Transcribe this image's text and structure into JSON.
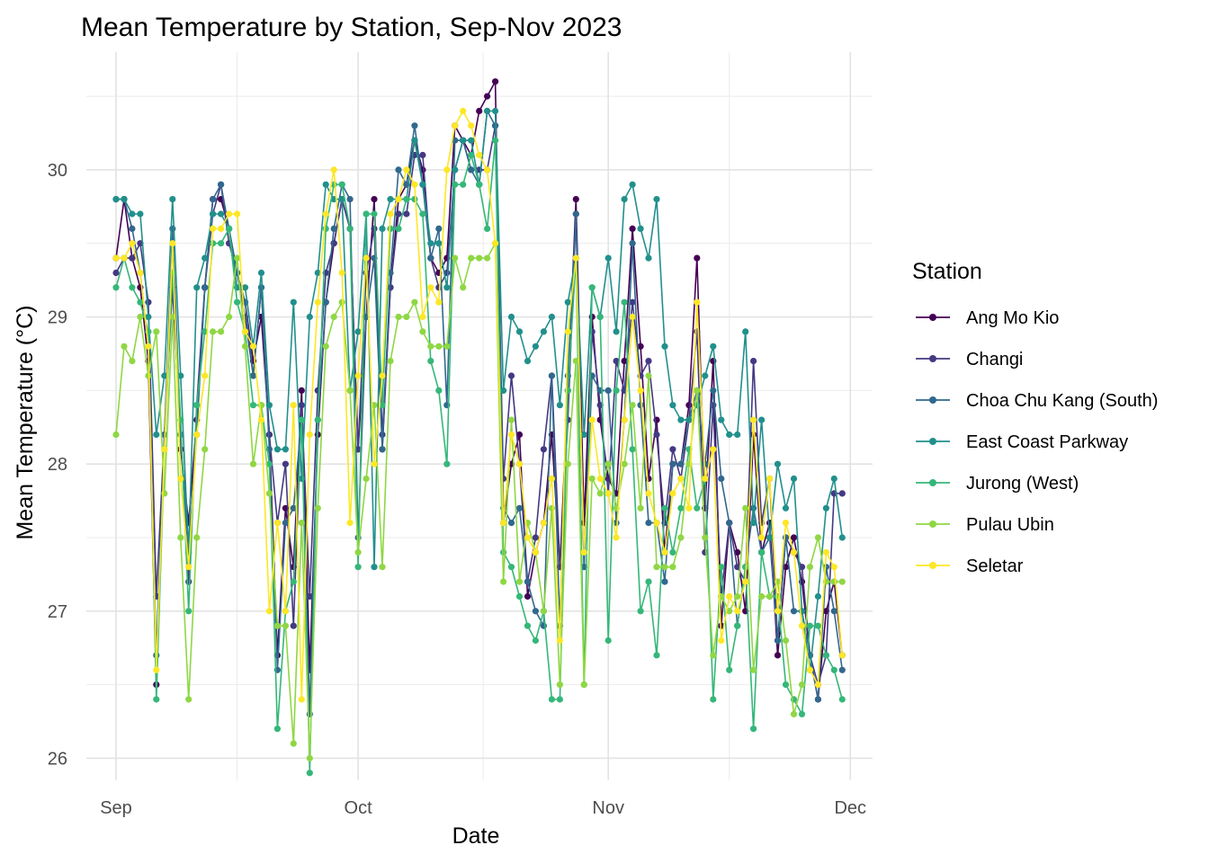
{
  "chart_data": {
    "type": "line",
    "title": "Mean Temperature by Station, Sep-Nov 2023",
    "xlabel": "Date",
    "ylabel": "Mean Temperature (°C)",
    "x_start": "2023-09-01",
    "x": [
      "2023-09-01",
      "2023-09-02",
      "2023-09-03",
      "2023-09-04",
      "2023-09-05",
      "2023-09-06",
      "2023-09-07",
      "2023-09-08",
      "2023-09-09",
      "2023-09-10",
      "2023-09-11",
      "2023-09-12",
      "2023-09-13",
      "2023-09-14",
      "2023-09-15",
      "2023-09-16",
      "2023-09-17",
      "2023-09-18",
      "2023-09-19",
      "2023-09-20",
      "2023-09-21",
      "2023-09-22",
      "2023-09-23",
      "2023-09-24",
      "2023-09-25",
      "2023-09-26",
      "2023-09-27",
      "2023-09-28",
      "2023-09-29",
      "2023-09-30",
      "2023-10-01",
      "2023-10-02",
      "2023-10-03",
      "2023-10-04",
      "2023-10-05",
      "2023-10-06",
      "2023-10-07",
      "2023-10-08",
      "2023-10-09",
      "2023-10-10",
      "2023-10-11",
      "2023-10-12",
      "2023-10-13",
      "2023-10-14",
      "2023-10-15",
      "2023-10-16",
      "2023-10-17",
      "2023-10-18",
      "2023-10-19",
      "2023-10-20",
      "2023-10-21",
      "2023-10-22",
      "2023-10-23",
      "2023-10-24",
      "2023-10-25",
      "2023-10-26",
      "2023-10-27",
      "2023-10-28",
      "2023-10-29",
      "2023-10-30",
      "2023-10-31",
      "2023-11-01",
      "2023-11-02",
      "2023-11-03",
      "2023-11-04",
      "2023-11-05",
      "2023-11-06",
      "2023-11-07",
      "2023-11-08",
      "2023-11-09",
      "2023-11-10",
      "2023-11-11",
      "2023-11-12",
      "2023-11-13",
      "2023-11-14",
      "2023-11-15",
      "2023-11-16",
      "2023-11-17",
      "2023-11-18",
      "2023-11-19",
      "2023-11-20",
      "2023-11-21",
      "2023-11-22",
      "2023-11-23",
      "2023-11-24",
      "2023-11-25",
      "2023-11-26",
      "2023-11-27",
      "2023-11-28",
      "2023-11-29",
      "2023-11-30"
    ],
    "ylim": [
      25.85,
      30.8
    ],
    "yticks": [
      26,
      27,
      28,
      29,
      30
    ],
    "xticks": [
      {
        "label": "Sep",
        "date": "2023-09-01"
      },
      {
        "label": "Oct",
        "date": "2023-10-01"
      },
      {
        "label": "Nov",
        "date": "2023-11-01"
      },
      {
        "label": "Dec",
        "date": "2023-12-01"
      }
    ],
    "grid": true,
    "legend": {
      "title": "Station",
      "position": "right"
    },
    "series": [
      {
        "name": "Ang Mo Kio",
        "color": "#440154",
        "values": [
          29.4,
          29.8,
          29.4,
          29.2,
          28.7,
          26.5,
          28.2,
          29.3,
          28.1,
          27.6,
          28.3,
          29.2,
          29.8,
          29.8,
          29.6,
          29.3,
          29.1,
          28.7,
          29.0,
          28.2,
          26.7,
          27.7,
          27.3,
          28.5,
          26.6,
          28.2,
          29.1,
          29.5,
          29.8,
          29.6,
          28.1,
          29.0,
          29.8,
          28.1,
          29.2,
          29.8,
          29.9,
          30.2,
          30.0,
          29.4,
          29.3,
          29.4,
          30.3,
          30.2,
          30.1,
          30.4,
          30.5,
          30.6,
          27.6,
          28.0,
          28.2,
          27.1,
          27.4,
          27.6,
          28.2,
          27.3,
          28.5,
          29.8,
          27.6,
          29.0,
          28.3,
          27.9,
          27.8,
          28.7,
          29.6,
          28.8,
          27.9,
          28.3,
          27.4,
          28.0,
          28.0,
          28.4,
          29.4,
          27.7,
          28.7,
          26.9,
          27.6,
          27.4,
          27.0,
          28.2,
          27.4,
          27.6,
          26.7,
          27.3,
          27.5,
          27.2,
          26.7,
          26.4,
          27.0,
          27.2,
          26.7
        ]
      },
      {
        "name": "Changi",
        "color": "#443983",
        "values": [
          29.3,
          29.4,
          29.4,
          29.5,
          29.1,
          27.1,
          28.2,
          29.2,
          28.2,
          27.2,
          28.4,
          29.2,
          29.7,
          29.9,
          29.5,
          29.3,
          29.0,
          28.6,
          29.2,
          28.2,
          27.6,
          28.0,
          26.9,
          28.4,
          27.1,
          28.5,
          29.3,
          29.5,
          29.8,
          29.6,
          28.1,
          29.3,
          29.6,
          28.2,
          29.2,
          29.7,
          29.7,
          30.1,
          30.1,
          29.4,
          29.2,
          29.3,
          30.0,
          30.2,
          30.0,
          30.0,
          30.0,
          30.3,
          27.9,
          28.6,
          28.0,
          27.2,
          27.5,
          28.1,
          28.6,
          27.3,
          28.3,
          29.7,
          27.3,
          28.9,
          28.4,
          27.8,
          28.7,
          28.5,
          29.1,
          28.6,
          28.7,
          28.2,
          27.6,
          28.1,
          27.9,
          28.3,
          28.9,
          27.4,
          28.4,
          27.1,
          27.6,
          27.3,
          27.2,
          28.7,
          27.6,
          27.9,
          26.8,
          27.5,
          27.4,
          27.3,
          26.7,
          26.5,
          26.7,
          27.8,
          27.8
        ]
      },
      {
        "name": "Choa Chu Kang (South)",
        "color": "#31688E",
        "values": [
          29.8,
          29.8,
          29.6,
          29.3,
          28.8,
          26.7,
          28.2,
          29.6,
          28.2,
          27.4,
          28.2,
          29.2,
          29.8,
          29.9,
          29.6,
          29.3,
          29.1,
          28.6,
          29.2,
          28.1,
          26.6,
          27.6,
          27.7,
          28.3,
          26.3,
          28.3,
          29.1,
          29.6,
          29.9,
          29.8,
          27.5,
          29.0,
          29.4,
          28.1,
          29.3,
          30.0,
          29.9,
          30.3,
          29.9,
          29.4,
          29.6,
          28.4,
          30.2,
          30.2,
          30.0,
          29.9,
          30.4,
          30.3,
          27.7,
          27.6,
          27.7,
          27.2,
          27.0,
          26.9,
          28.6,
          26.9,
          28.6,
          29.7,
          27.3,
          28.6,
          28.5,
          28.5,
          27.6,
          28.3,
          29.5,
          28.4,
          27.6,
          27.6,
          27.2,
          28.0,
          28.0,
          28.3,
          28.5,
          28.0,
          28.5,
          27.9,
          27.6,
          26.9,
          27.3,
          27.7,
          27.4,
          27.5,
          26.8,
          27.5,
          27.0,
          27.0,
          26.7,
          26.4,
          27.3,
          27.0,
          26.6
        ]
      },
      {
        "name": "East Coast Parkway",
        "color": "#21908C",
        "values": [
          29.8,
          29.8,
          29.7,
          29.7,
          29.0,
          28.2,
          28.6,
          29.8,
          28.6,
          27.4,
          29.2,
          29.4,
          29.7,
          29.7,
          29.6,
          29.2,
          29.2,
          28.8,
          29.3,
          28.4,
          28.1,
          28.1,
          29.1,
          27.9,
          29.0,
          29.3,
          29.9,
          29.8,
          29.8,
          28.5,
          28.9,
          29.7,
          27.3,
          29.6,
          29.8,
          29.8,
          29.8,
          30.2,
          29.9,
          29.5,
          29.5,
          29.2,
          30.0,
          30.2,
          30.2,
          29.9,
          30.4,
          30.4,
          28.5,
          29.0,
          28.9,
          28.7,
          28.8,
          28.9,
          29.0,
          28.4,
          29.1,
          29.4,
          28.2,
          29.2,
          29.0,
          29.4,
          28.9,
          29.8,
          29.9,
          29.6,
          29.4,
          29.8,
          28.8,
          28.4,
          28.3,
          28.3,
          28.4,
          28.6,
          28.8,
          28.3,
          28.2,
          28.2,
          28.9,
          27.6,
          28.3,
          27.5,
          28.0,
          27.7,
          27.9,
          27.0,
          26.6,
          27.1,
          27.7,
          27.9,
          27.5
        ]
      },
      {
        "name": "Jurong (West)",
        "color": "#35B779",
        "values": [
          29.2,
          29.4,
          29.2,
          29.1,
          28.9,
          26.4,
          28.1,
          29.3,
          28.3,
          27.0,
          28.4,
          28.9,
          29.5,
          29.5,
          29.6,
          29.1,
          28.9,
          28.4,
          28.4,
          28.0,
          26.2,
          27.0,
          27.2,
          28.3,
          25.9,
          28.3,
          29.6,
          29.9,
          29.9,
          29.6,
          27.3,
          29.7,
          29.7,
          28.4,
          29.6,
          29.6,
          29.8,
          29.8,
          29.7,
          28.7,
          28.5,
          28.0,
          29.9,
          29.9,
          30.1,
          29.9,
          29.6,
          30.2,
          27.4,
          27.3,
          27.1,
          26.9,
          26.8,
          27.0,
          26.4,
          26.4,
          28.5,
          29.4,
          26.5,
          29.2,
          29.0,
          26.8,
          28.5,
          29.1,
          28.1,
          27.0,
          27.2,
          26.7,
          27.7,
          27.4,
          27.7,
          28.1,
          27.7,
          27.9,
          26.4,
          27.3,
          26.6,
          26.9,
          27.3,
          26.2,
          27.4,
          27.1,
          27.1,
          26.5,
          26.4,
          26.3,
          26.9,
          26.9,
          26.7,
          26.6,
          26.4
        ]
      },
      {
        "name": "Pulau Ubin",
        "color": "#8FD744",
        "values": [
          28.2,
          28.8,
          28.7,
          29.0,
          28.6,
          28.9,
          27.8,
          29.0,
          27.5,
          26.4,
          27.5,
          28.1,
          28.9,
          28.9,
          29.0,
          29.4,
          28.8,
          28.0,
          28.4,
          27.8,
          26.9,
          26.9,
          26.1,
          27.6,
          26.0,
          27.7,
          28.8,
          29.0,
          29.1,
          28.5,
          27.4,
          27.9,
          28.4,
          27.3,
          28.7,
          29.0,
          29.0,
          29.1,
          28.9,
          28.8,
          28.8,
          28.8,
          29.4,
          29.2,
          29.4,
          29.4,
          29.4,
          29.5,
          27.2,
          28.3,
          27.2,
          27.6,
          27.4,
          27.0,
          27.7,
          26.5,
          28.0,
          28.7,
          26.5,
          27.9,
          27.8,
          28.0,
          27.7,
          28.0,
          28.4,
          27.7,
          28.6,
          27.3,
          27.3,
          27.3,
          27.5,
          28.0,
          28.5,
          27.5,
          26.7,
          27.1,
          27.0,
          27.1,
          27.7,
          26.6,
          27.1,
          27.1,
          27.2,
          26.8,
          26.3,
          26.5,
          27.3,
          27.5,
          27.2,
          27.2,
          27.2
        ]
      },
      {
        "name": "Seletar",
        "color": "#FDE725",
        "values": [
          29.4,
          29.4,
          29.5,
          29.3,
          28.8,
          26.6,
          28.1,
          29.5,
          27.9,
          27.3,
          28.2,
          28.6,
          29.6,
          29.6,
          29.7,
          29.7,
          28.9,
          28.8,
          28.3,
          27.0,
          27.6,
          27.0,
          28.4,
          26.4,
          28.2,
          29.1,
          29.7,
          30.0,
          29.3,
          27.6,
          28.6,
          29.4,
          28.0,
          28.6,
          29.7,
          29.8,
          30.0,
          29.9,
          29.0,
          29.2,
          29.1,
          30.0,
          30.3,
          30.4,
          30.3,
          30.1,
          30.0,
          29.5,
          27.6,
          28.2,
          28.0,
          27.5,
          27.4,
          27.6,
          27.9,
          26.8,
          28.9,
          29.4,
          27.4,
          28.3,
          27.9,
          27.8,
          27.5,
          28.3,
          29.0,
          28.5,
          27.8,
          27.6,
          27.4,
          27.8,
          27.9,
          27.7,
          29.1,
          27.9,
          28.1,
          26.8,
          27.1,
          27.0,
          27.2,
          28.3,
          27.5,
          27.9,
          27.0,
          27.6,
          27.4,
          26.9,
          26.6,
          26.5,
          27.4,
          27.3,
          26.7
        ]
      }
    ]
  }
}
